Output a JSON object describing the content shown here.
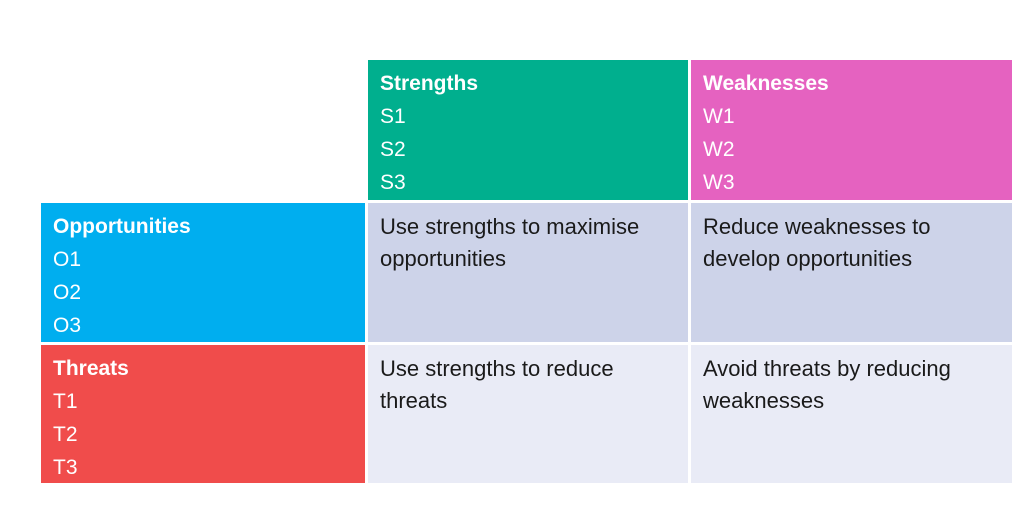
{
  "matrix": {
    "quadrants": {
      "strengths": {
        "title": "Strengths",
        "items": [
          "S1",
          "S2",
          "S3"
        ],
        "bg": "#00AF8E"
      },
      "weaknesses": {
        "title": "Weaknesses",
        "items": [
          "W1",
          "W2",
          "W3"
        ],
        "bg": "#E562C0"
      },
      "opportunities": {
        "title": "Opportunities",
        "items": [
          "O1",
          "O2",
          "O3"
        ],
        "bg": "#00AEEF"
      },
      "threats": {
        "title": "Threats",
        "items": [
          "T1",
          "T2",
          "T3"
        ],
        "bg": "#F04C4B"
      }
    },
    "strategies": {
      "so": "Use strengths to maximise opportunities",
      "wo": "Reduce weaknesses to develop opportunities",
      "st": "Use strengths to reduce threats",
      "wt": "Avoid threats by reducing weaknesses",
      "row2_bg": "#CDD3E9",
      "row3_bg": "#E9EBF6"
    },
    "colors": {
      "text_dark": "#1A1A1A",
      "text_light": "#FFFFFF",
      "page_bg": "#FFFFFF"
    }
  }
}
